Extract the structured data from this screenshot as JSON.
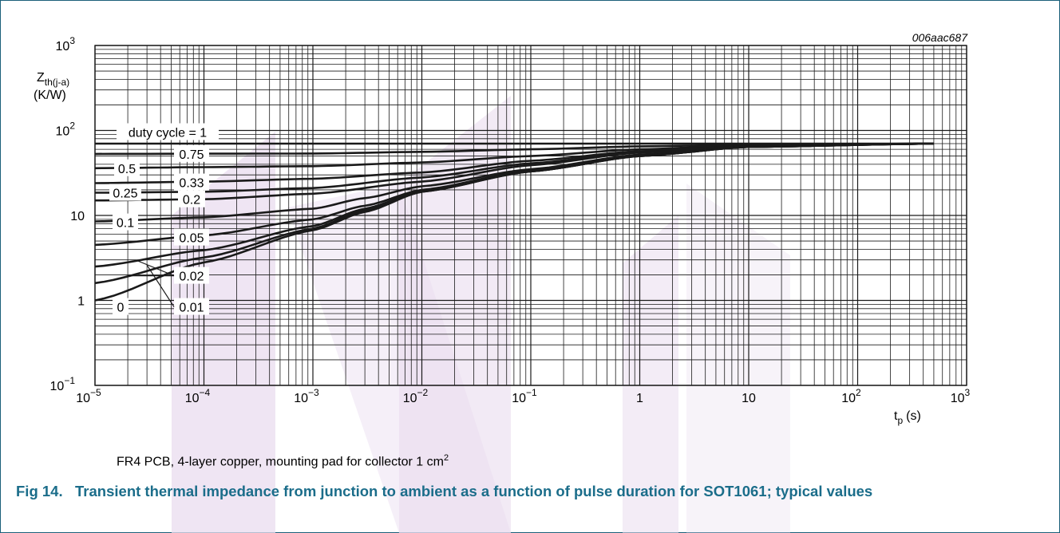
{
  "figure_code": "006aac687",
  "note": {
    "text": "FR4 PCB, 4-layer copper, mounting pad for collector 1 cm",
    "sup": "2"
  },
  "caption": {
    "number": "Fig 14.",
    "text": "Transient thermal impedance from junction to ambient as a function of pulse duration for SOT1061; typical values"
  },
  "colors": {
    "frame": "#1b5f7a",
    "caption": "#1b6d8a",
    "line": "#1a1a1a",
    "watermark": "#e9dcef"
  },
  "chart_data": {
    "type": "line",
    "x_scale": "log",
    "y_scale": "log",
    "xlim": [
      1e-05,
      1000
    ],
    "ylim": [
      0.1,
      1000
    ],
    "grid": true,
    "ylabel": {
      "main": "Z",
      "sub": "th(j-a)",
      "unit": "(K/W)"
    },
    "xlabel": {
      "main": "t",
      "sub": "p",
      "unit": "(s)"
    },
    "x_ticks": [
      {
        "value": 1e-05,
        "base": "10",
        "exp": "−5"
      },
      {
        "value": 0.0001,
        "base": "10",
        "exp": "−4"
      },
      {
        "value": 0.001,
        "base": "10",
        "exp": "−3"
      },
      {
        "value": 0.01,
        "base": "10",
        "exp": "−2"
      },
      {
        "value": 0.1,
        "base": "10",
        "exp": "−1"
      },
      {
        "value": 1,
        "base": "1",
        "exp": ""
      },
      {
        "value": 10,
        "base": "10",
        "exp": ""
      },
      {
        "value": 100,
        "base": "10",
        "exp": "2"
      },
      {
        "value": 1000,
        "base": "10",
        "exp": "3"
      }
    ],
    "y_ticks": [
      {
        "value": 0.1,
        "base": "10",
        "exp": "−1"
      },
      {
        "value": 1,
        "base": "1",
        "exp": ""
      },
      {
        "value": 10,
        "base": "10",
        "exp": ""
      },
      {
        "value": 100,
        "base": "10",
        "exp": "2"
      },
      {
        "value": 1000,
        "base": "10",
        "exp": "3"
      }
    ],
    "series": [
      {
        "name": "duty cycle = 1",
        "x": [
          1e-05,
          0.001,
          0.1,
          500
        ],
        "y": [
          70,
          70,
          70,
          70
        ]
      },
      {
        "name": "0.75",
        "x": [
          1e-05,
          0.001,
          0.01,
          0.1,
          1,
          10,
          500
        ],
        "y": [
          53,
          53.5,
          56,
          60,
          65,
          68,
          70
        ]
      },
      {
        "name": "0.5",
        "x": [
          1e-05,
          0.0001,
          0.001,
          0.01,
          0.1,
          1,
          10,
          500
        ],
        "y": [
          36,
          37,
          38,
          42,
          50,
          60,
          67,
          70
        ]
      },
      {
        "name": "0.33",
        "x": [
          1e-05,
          0.0001,
          0.001,
          0.01,
          0.1,
          1,
          10,
          500
        ],
        "y": [
          24,
          25,
          27,
          32,
          44,
          57,
          66,
          70
        ]
      },
      {
        "name": "0.25",
        "x": [
          1e-05,
          0.0001,
          0.001,
          0.01,
          0.1,
          1,
          10,
          500
        ],
        "y": [
          18.5,
          19,
          21,
          28,
          41,
          56,
          66,
          70
        ]
      },
      {
        "name": "0.2",
        "x": [
          1e-05,
          0.0001,
          0.001,
          0.01,
          0.1,
          1,
          10,
          500
        ],
        "y": [
          15,
          15.5,
          18,
          25,
          39,
          55,
          65,
          70
        ]
      },
      {
        "name": "0.1",
        "x": [
          1e-05,
          0.0001,
          0.001,
          0.003,
          0.01,
          0.1,
          1,
          10,
          500
        ],
        "y": [
          8.5,
          9.5,
          12,
          16,
          22,
          35,
          52,
          65,
          70
        ]
      },
      {
        "name": "0.05",
        "x": [
          1e-05,
          0.0001,
          0.001,
          0.003,
          0.01,
          0.1,
          1,
          10,
          500
        ],
        "y": [
          4.5,
          5.8,
          9,
          13,
          20,
          34,
          51,
          64,
          70
        ]
      },
      {
        "name": "0.02",
        "x": [
          1e-05,
          0.0001,
          0.001,
          0.003,
          0.01,
          0.1,
          1,
          10,
          500
        ],
        "y": [
          2.5,
          3.9,
          7.5,
          12,
          19.5,
          33,
          50,
          64,
          70
        ]
      },
      {
        "name": "0.01",
        "x": [
          1e-05,
          0.0001,
          0.001,
          0.003,
          0.01,
          0.1,
          1,
          10,
          500
        ],
        "y": [
          1.6,
          3.2,
          7.0,
          11.5,
          19,
          33,
          50,
          64,
          70
        ]
      },
      {
        "name": "0",
        "x": [
          1e-05,
          0.0001,
          0.001,
          0.003,
          0.01,
          0.1,
          1,
          10,
          500
        ],
        "y": [
          1.0,
          2.8,
          6.7,
          11,
          19,
          33,
          50,
          64,
          70
        ]
      }
    ]
  }
}
